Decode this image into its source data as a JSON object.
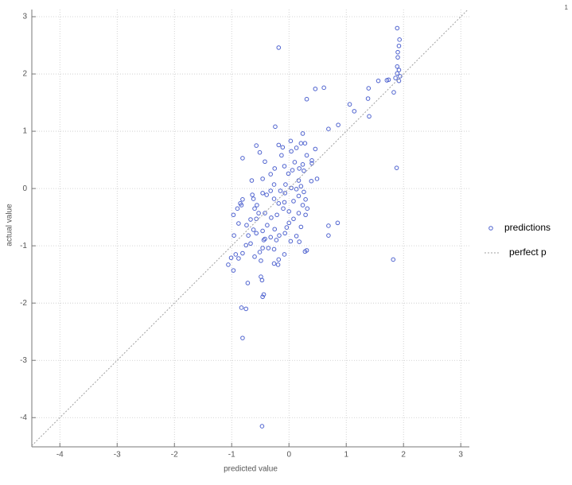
{
  "chart_data": {
    "type": "scatter",
    "x_label": "predicted value",
    "y_label": "actual value",
    "corner_label": "1",
    "xlim": [
      -4.49,
      3.15
    ],
    "ylim": [
      -4.51,
      3.125
    ],
    "xticks": [
      -4,
      -3,
      -2,
      -1,
      0,
      1,
      2,
      3
    ],
    "yticks": [
      -4,
      -3,
      -2,
      -1,
      0,
      1,
      2,
      3
    ],
    "grid": true,
    "legend": "right",
    "series": [
      {
        "name": "predictions",
        "color": "#4f63cf",
        "x": [
          -0.18,
          -0.47,
          -0.81,
          -0.83,
          -0.75,
          -0.72,
          -0.49,
          -0.47,
          -0.44,
          -0.46,
          1.89,
          1.93,
          1.92,
          1.9,
          1.9,
          1.89,
          1.92,
          1.89,
          1.94,
          1.86,
          1.92,
          1.71,
          1.56,
          1.74,
          1.83,
          1.88,
          1.82,
          1.39,
          1.38,
          1.4,
          1.06,
          1.14,
          0.86,
          0.69,
          0.61,
          0.46,
          0.31,
          0.85,
          0.69,
          0.69,
          0.31,
          0.28,
          0.32,
          0.29,
          0.29,
          -1.01,
          -1.06,
          -0.97,
          -0.93,
          -0.88,
          -0.81,
          -0.75,
          -0.67,
          -0.6,
          -0.51,
          -0.49,
          -0.46,
          -0.62,
          -0.71,
          -0.96,
          -0.88,
          -0.97,
          -0.9,
          -0.85,
          -0.81,
          -0.83,
          -0.64,
          -0.65,
          -0.81,
          -0.57,
          -0.51,
          -0.42,
          -0.46,
          -0.32,
          -0.25,
          -0.24,
          -0.18,
          -0.11,
          -0.13,
          -0.08,
          -0.06,
          0.03,
          0.04,
          0.13,
          0.21,
          0.24,
          0.28,
          0.31,
          0.24,
          0.18,
          0.1,
          0.06,
          -0.01,
          0.26,
          0.46,
          0.4,
          0.17,
          0.21,
          0.26,
          0.17,
          0.13,
          0.04,
          -0.07,
          -0.15,
          -0.26,
          -0.32,
          -0.39,
          -0.26,
          -0.18,
          -0.1,
          -0.21,
          -0.31,
          -0.42,
          -0.53,
          -0.57,
          -0.67,
          -0.74,
          -0.57,
          -0.46,
          -0.42,
          -0.32,
          -0.25,
          -0.17,
          -0.07,
          0,
          0.08,
          0.17,
          0.24,
          0.21,
          0.13,
          0.18,
          0.03,
          -0.04,
          -0.22,
          -0.26,
          -0.18,
          -0.26,
          -0.19,
          -0.36,
          -0.44,
          -0.08,
          0,
          -0.08,
          0.08,
          0.4,
          0.49,
          0.39,
          -0.46,
          -0.56,
          -0.6,
          -0.38,
          -0.62
        ],
        "values": [
          2.46,
          -4.15,
          -2.61,
          -2.08,
          -2.1,
          -1.65,
          -1.54,
          -1.6,
          -1.85,
          -1.89,
          2.8,
          2.6,
          2.49,
          2.38,
          2.29,
          2.13,
          2.07,
          2.01,
          1.96,
          1.93,
          1.88,
          1.89,
          1.88,
          1.9,
          1.68,
          0.36,
          -1.24,
          1.75,
          1.57,
          1.26,
          1.47,
          1.35,
          1.11,
          1.04,
          1.76,
          1.74,
          1.56,
          -0.6,
          -0.65,
          -0.82,
          -1.08,
          -1.1,
          -0.35,
          -0.46,
          -0.19,
          -1.21,
          -1.33,
          -1.43,
          -1.15,
          -1.22,
          -1.13,
          -0.99,
          -0.96,
          -1.19,
          -1.11,
          -1.26,
          -1.04,
          -0.72,
          -0.82,
          -0.82,
          -0.61,
          -0.46,
          -0.35,
          -0.26,
          -0.19,
          -0.29,
          -0.11,
          0.14,
          0.53,
          0.75,
          0.63,
          0.47,
          0.17,
          0.25,
          0.35,
          1.08,
          0.76,
          0.72,
          0.58,
          0.39,
          0.07,
          0.83,
          0.65,
          0.71,
          0.79,
          0.96,
          0.79,
          0.58,
          0.42,
          0.35,
          0.46,
          0.32,
          0.26,
          0.31,
          0.69,
          0.49,
          0.14,
          0.04,
          -0.06,
          -0.13,
          -0.01,
          0.01,
          -0.08,
          -0.04,
          0.07,
          -0.04,
          -0.11,
          -0.18,
          -0.26,
          -0.35,
          -0.46,
          -0.51,
          -0.43,
          -0.43,
          -0.53,
          -0.54,
          -0.64,
          -0.78,
          -0.74,
          -0.88,
          -0.85,
          -0.71,
          -0.82,
          -0.78,
          -0.6,
          -0.53,
          -0.43,
          -0.29,
          -0.67,
          -0.83,
          -0.93,
          -0.92,
          -0.68,
          -0.9,
          -1.06,
          -1.24,
          -1.31,
          -1.33,
          -1.04,
          -0.9,
          -1.15,
          -0.4,
          -0.24,
          -0.22,
          0.44,
          0.17,
          0.13,
          -0.08,
          -0.29,
          -0.35,
          -0.64,
          -0.18
        ]
      },
      {
        "name": "perfect p",
        "color": "#a0a0a0",
        "style": "identity"
      }
    ]
  }
}
